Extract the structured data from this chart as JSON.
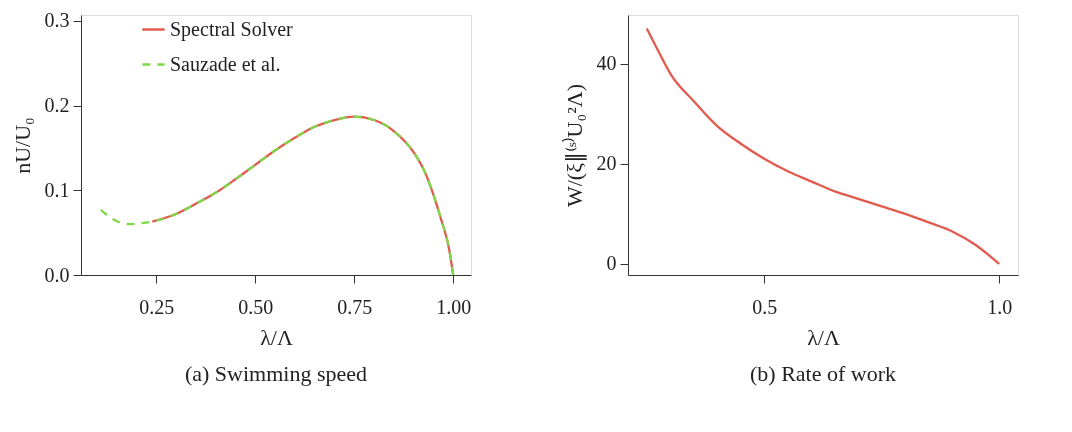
{
  "chart_data": [
    {
      "type": "line",
      "title": "(a) Swimming speed",
      "xlabel": "λ/Λ",
      "ylabel": "nU/U₀",
      "xlim": [
        0.06,
        1.045
      ],
      "xticks": [
        {
          "value": 0.25,
          "label": "0.25"
        },
        {
          "value": 0.5,
          "label": "0.50"
        },
        {
          "value": 0.75,
          "label": "0.75"
        },
        {
          "value": 1.0,
          "label": "1.00"
        }
      ],
      "ylim": [
        0,
        0.307
      ],
      "yticks": [
        {
          "value": 0,
          "label": "0.0"
        },
        0.1,
        0.2,
        0.3
      ],
      "grid": false,
      "legend": "top",
      "series": [
        {
          "name": "Spectral Solver",
          "color": "#e05a4e",
          "line_style": "solid",
          "x": [
            0.24,
            0.3,
            0.35,
            0.4,
            0.45,
            0.5,
            0.55,
            0.6,
            0.65,
            0.7,
            0.75,
            0.8,
            0.85,
            0.9,
            0.93,
            0.95,
            0.97,
            0.99,
            1.0
          ],
          "values": [
            0.063,
            0.072,
            0.084,
            0.097,
            0.113,
            0.13,
            0.147,
            0.162,
            0.175,
            0.183,
            0.187,
            0.183,
            0.17,
            0.145,
            0.12,
            0.095,
            0.065,
            0.03,
            0.0
          ]
        },
        {
          "name": "Sauzade et al.",
          "color": "#7fd84a",
          "line_style": "dashed",
          "x": [
            0.11,
            0.14,
            0.18,
            0.21,
            0.24,
            0.3,
            0.35,
            0.4,
            0.45,
            0.5,
            0.55,
            0.6,
            0.65,
            0.7,
            0.75,
            0.8,
            0.85,
            0.9,
            0.93,
            0.95,
            0.97,
            0.99,
            1.0
          ],
          "values": [
            0.077,
            0.066,
            0.06,
            0.061,
            0.063,
            0.072,
            0.084,
            0.097,
            0.113,
            0.13,
            0.147,
            0.162,
            0.175,
            0.183,
            0.187,
            0.183,
            0.17,
            0.145,
            0.12,
            0.095,
            0.065,
            0.03,
            0.0
          ]
        }
      ]
    },
    {
      "type": "line",
      "title": "(b) Rate of work",
      "xlabel": "λ/Λ",
      "ylabel": "W/(ξ∥⁽ˢ⁾U₀²Λ)",
      "xlim": [
        0.21,
        1.04
      ],
      "xticks": [
        0.5,
        {
          "value": 1.0,
          "label": "1.0"
        }
      ],
      "ylim": [
        -2.2,
        49.7
      ],
      "yticks": [
        0,
        20,
        40
      ],
      "grid": false,
      "series": [
        {
          "color": "#e05a4e",
          "line_style": "solid",
          "x": [
            0.25,
            0.28,
            0.3,
            0.35,
            0.4,
            0.45,
            0.5,
            0.55,
            0.6,
            0.65,
            0.7,
            0.75,
            0.8,
            0.85,
            0.9,
            0.95,
            1.0
          ],
          "values": [
            47,
            41.5,
            38,
            32.5,
            27.5,
            24,
            21,
            18.5,
            16.5,
            14.5,
            13,
            11.5,
            10,
            8.3,
            6.5,
            3.8,
            0
          ]
        }
      ]
    }
  ]
}
